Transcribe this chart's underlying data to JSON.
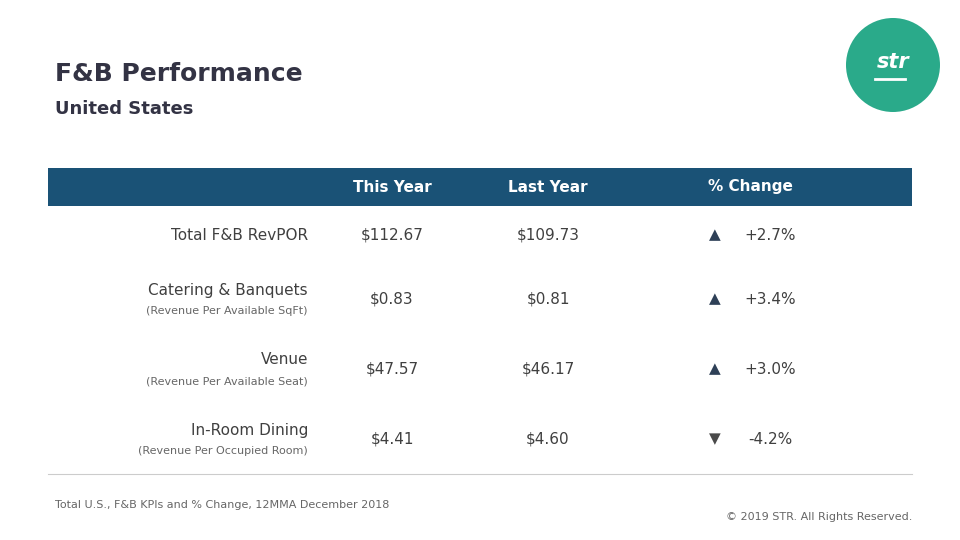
{
  "title": "F&B Performance",
  "subtitle": "United States",
  "background_color": "#ffffff",
  "header_bg_color": "#1a5276",
  "header_text_color": "#ffffff",
  "body_text_color": "#404040",
  "columns": [
    "",
    "This Year",
    "Last Year",
    "% Change"
  ],
  "rows": [
    {
      "label": "Total F&B RevPOR",
      "sublabel": "",
      "this_year": "$112.67",
      "last_year": "$109.73",
      "change": "+2.7%",
      "direction": "up"
    },
    {
      "label": "Catering & Banquets",
      "sublabel": "(Revenue Per Available SqFt)",
      "this_year": "$0.83",
      "last_year": "$0.81",
      "change": "+3.4%",
      "direction": "up"
    },
    {
      "label": "Venue",
      "sublabel": "(Revenue Per Available Seat)",
      "this_year": "$47.57",
      "last_year": "$46.17",
      "change": "+3.0%",
      "direction": "up"
    },
    {
      "label": "In-Room Dining",
      "sublabel": "(Revenue Per Occupied Room)",
      "this_year": "$4.41",
      "last_year": "$4.60",
      "change": "-4.2%",
      "direction": "down"
    }
  ],
  "footer_text": "Total U.S., F&B KPIs and % Change, 12MMA December 2018",
  "copyright_text": "© 2019 STR. All Rights Reserved.",
  "str_logo_color": "#2aaa8a",
  "up_arrow_color": "#2e4057",
  "down_arrow_color": "#4a4a4a",
  "title_fontsize": 18,
  "subtitle_fontsize": 13,
  "header_fontsize": 11,
  "body_fontsize": 11,
  "sublabel_fontsize": 8,
  "footer_fontsize": 8
}
